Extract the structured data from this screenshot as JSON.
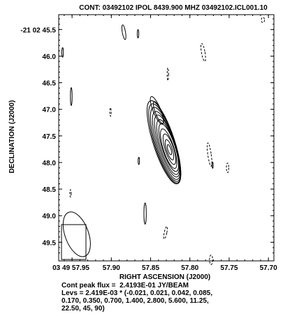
{
  "chart_data": {
    "type": "contour",
    "title": "CONT: 03492102  IPOL  8439.900 MHZ  03492102.ICL001.10",
    "xlabel": "RIGHT ASCENSION (J2000)",
    "ylabel": "DECLINATION (J2000)",
    "x_ticks": [
      "03 49 57.95",
      "57.90",
      "57.85",
      "57.80",
      "57.75",
      "57.70"
    ],
    "x_tick_values_sec": [
      57.95,
      57.9,
      57.85,
      57.8,
      57.75,
      57.7
    ],
    "xlim_sec": [
      57.967,
      57.693
    ],
    "y_ticks": [
      "-21 02 45.5",
      "46.0",
      "46.5",
      "47.0",
      "47.5",
      "48.0",
      "48.5",
      "49.0",
      "49.5"
    ],
    "y_tick_values_arcsec": [
      45.5,
      46.0,
      46.5,
      47.0,
      47.5,
      48.0,
      48.5,
      49.0,
      49.5
    ],
    "ylim_arcsec": [
      45.22,
      49.85
    ],
    "peak_flux": "Cont peak flux =  2.4193E-01 JY/BEAM",
    "levs_text": [
      "Levs = 2.419E-03 * (-0.021, 0.021, 0.042, 0.085,",
      "0.170, 0.350, 0.700, 1.400, 2.800, 5.600, 11.25,",
      "22.50, 45, 90)"
    ],
    "base_level": 0.002419,
    "levels": [
      -0.021,
      0.021,
      0.042,
      0.085,
      0.17,
      0.35,
      0.7,
      1.4,
      2.8,
      5.6,
      11.25,
      22.5,
      45,
      90
    ],
    "peak_position": {
      "ra_sec": 57.826,
      "dec_arcsec": 47.76
    },
    "beam": {
      "ra_sec": 57.944,
      "dec_arcsec": 49.35,
      "major_arcsec": 0.44,
      "minor_arcsec": 0.22,
      "pa_deg": -20
    },
    "source_contours": [
      {
        "cx": 57.833,
        "cy": 47.62,
        "a": 0.82,
        "b": 0.2,
        "rot": -18
      },
      {
        "cx": 57.832,
        "cy": 47.64,
        "a": 0.78,
        "b": 0.19,
        "rot": -18
      },
      {
        "cx": 57.831,
        "cy": 47.66,
        "a": 0.73,
        "b": 0.18,
        "rot": -18
      },
      {
        "cx": 57.83,
        "cy": 47.68,
        "a": 0.67,
        "b": 0.165,
        "rot": -18
      },
      {
        "cx": 57.829,
        "cy": 47.69,
        "a": 0.61,
        "b": 0.15,
        "rot": -18
      },
      {
        "cx": 57.828,
        "cy": 47.71,
        "a": 0.54,
        "b": 0.135,
        "rot": -18
      },
      {
        "cx": 57.827,
        "cy": 47.72,
        "a": 0.47,
        "b": 0.12,
        "rot": -18
      },
      {
        "cx": 57.827,
        "cy": 47.74,
        "a": 0.39,
        "b": 0.1,
        "rot": -18
      },
      {
        "cx": 57.826,
        "cy": 47.75,
        "a": 0.3,
        "b": 0.08,
        "rot": -18
      },
      {
        "cx": 57.826,
        "cy": 47.76,
        "a": 0.2,
        "b": 0.055,
        "rot": -18
      },
      {
        "cx": 57.826,
        "cy": 47.76,
        "a": 0.1,
        "b": 0.03,
        "rot": -18
      }
    ],
    "noise_contours": [
      {
        "cx": 57.884,
        "cy": 45.55,
        "a": 0.14,
        "b": 0.03,
        "rot": -10,
        "neg": false
      },
      {
        "cx": 57.866,
        "cy": 45.58,
        "a": 0.08,
        "b": 0.014,
        "rot": 0,
        "neg": false
      },
      {
        "cx": 57.707,
        "cy": 45.32,
        "a": 0.05,
        "b": 0.03,
        "rot": 0,
        "neg": true
      },
      {
        "cx": 57.962,
        "cy": 45.93,
        "a": 0.09,
        "b": 0.015,
        "rot": 0,
        "neg": false
      },
      {
        "cx": 57.783,
        "cy": 45.93,
        "a": 0.17,
        "b": 0.033,
        "rot": -10,
        "neg": true
      },
      {
        "cx": 57.828,
        "cy": 46.34,
        "a": 0.12,
        "b": 0.013,
        "rot": 0,
        "neg": true
      },
      {
        "cx": 57.951,
        "cy": 46.76,
        "a": 0.17,
        "b": 0.016,
        "rot": 0,
        "neg": false
      },
      {
        "cx": 57.901,
        "cy": 47.05,
        "a": 0.08,
        "b": 0.013,
        "rot": 0,
        "neg": true
      },
      {
        "cx": 57.775,
        "cy": 47.85,
        "a": 0.22,
        "b": 0.032,
        "rot": -8,
        "neg": true
      },
      {
        "cx": 57.865,
        "cy": 47.97,
        "a": 0.07,
        "b": 0.013,
        "rot": 0,
        "neg": false
      },
      {
        "cx": 57.771,
        "cy": 48.05,
        "a": 0.06,
        "b": 0.01,
        "rot": 0,
        "neg": false
      },
      {
        "cx": 57.752,
        "cy": 48.1,
        "a": 0.09,
        "b": 0.022,
        "rot": 0,
        "neg": true
      },
      {
        "cx": 57.952,
        "cy": 48.58,
        "a": 0.07,
        "b": 0.013,
        "rot": 0,
        "neg": true
      },
      {
        "cx": 57.857,
        "cy": 48.96,
        "a": 0.2,
        "b": 0.022,
        "rot": 0,
        "neg": false
      },
      {
        "cx": 57.831,
        "cy": 49.32,
        "a": 0.12,
        "b": 0.024,
        "rot": 12,
        "neg": true
      },
      {
        "cx": 57.773,
        "cy": 49.83,
        "a": 0.09,
        "b": 0.03,
        "rot": 0,
        "neg": true
      }
    ]
  }
}
